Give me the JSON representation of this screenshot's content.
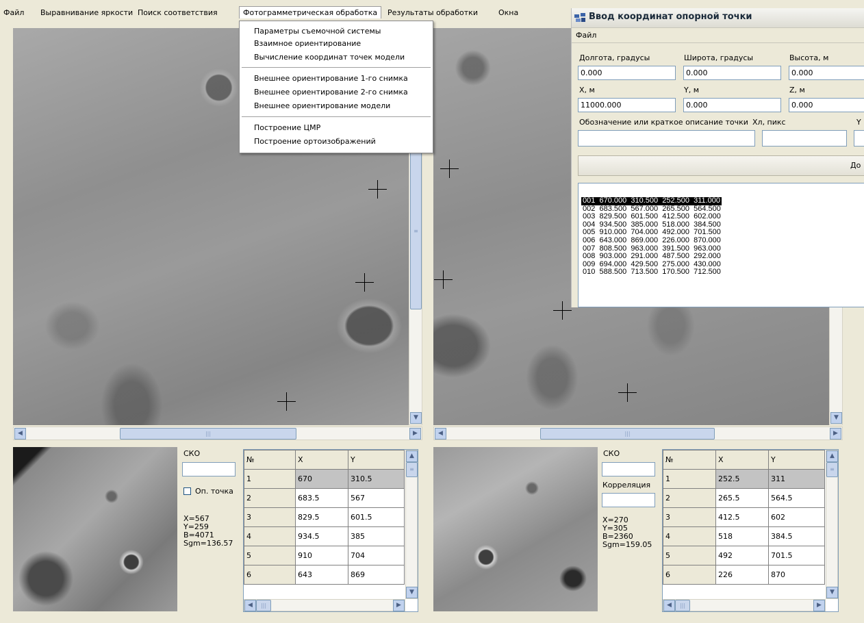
{
  "menubar": {
    "items": [
      "Файл",
      "Выравнивание яркости",
      "Поиск соответствия",
      "Фотограмметрическая обработка",
      "Результаты обработки",
      "Окна"
    ]
  },
  "dropdown": {
    "groups": [
      [
        "Параметры съемочной системы",
        "Взаимное ориентирование",
        "Вычисление координат точек модели"
      ],
      [
        "Внешнее ориентирование 1-го снимка",
        "Внешнее ориентирование 2-го снимка",
        "Внешнее ориентирование модели"
      ],
      [
        "Построение ЦМР",
        "Построение ортоизображений"
      ]
    ]
  },
  "left_panel": {
    "sko_label": "СКО",
    "sko_value": "",
    "checkbox_label": "Оп. точка",
    "info": [
      "X=567",
      "Y=259",
      "B=4071",
      "Sgm=136.57"
    ],
    "grid_headers": [
      "№",
      "X",
      "Y"
    ],
    "grid_rows": [
      [
        "1",
        "670",
        "310.5"
      ],
      [
        "2",
        "683.5",
        "567"
      ],
      [
        "3",
        "829.5",
        "601.5"
      ],
      [
        "4",
        "934.5",
        "385"
      ],
      [
        "5",
        "910",
        "704"
      ],
      [
        "6",
        "643",
        "869"
      ]
    ]
  },
  "right_panel": {
    "sko_label": "СКО",
    "sko_value": "",
    "corr_label": "Корреляция",
    "corr_value": "",
    "info": [
      "X=270",
      "Y=305",
      "B=2360",
      "Sgm=159.05"
    ],
    "grid_headers": [
      "№",
      "X",
      "Y"
    ],
    "grid_rows": [
      [
        "1",
        "252.5",
        "311"
      ],
      [
        "2",
        "265.5",
        "564.5"
      ],
      [
        "3",
        "412.5",
        "602"
      ],
      [
        "4",
        "518",
        "384.5"
      ],
      [
        "5",
        "492",
        "701.5"
      ],
      [
        "6",
        "226",
        "870"
      ]
    ]
  },
  "dialog": {
    "title": "Ввод координат опорной точки",
    "menu_file": "Файл",
    "labels": {
      "lon": "Долгота, градусы",
      "lat": "Широта, градусы",
      "height": "Высота, м",
      "x": "X, м",
      "y": "Y, м",
      "z": "Z, м",
      "desc": "Обозначение или краткое описание точки",
      "xl": "Хл, пикс",
      "yl": "Y"
    },
    "values": {
      "lon": "0.000",
      "lat": "0.000",
      "height": "0.000",
      "x": "11000.000",
      "y": "0.000",
      "z": "0.000",
      "desc": "",
      "xl": "",
      "yl": ""
    },
    "add_button": "До",
    "list": [
      "001  670.000  310.500  252.500  311.000",
      "002  683.500  567.000  265.500  564.500",
      "003  829.500  601.500  412.500  602.000",
      "004  934.500  385.000  518.000  384.500",
      "005  910.000  704.000  492.000  701.500",
      "006  643.000  869.000  226.000  870.000",
      "007  808.500  963.000  391.500  963.000",
      "008  903.000  291.000  487.500  292.000",
      "009  694.000  429.500  275.000  430.000",
      "010  588.500  713.500  170.500  712.500"
    ],
    "selected_index": 0
  },
  "icons": {
    "scroll_up": "▲",
    "scroll_down": "▼",
    "scroll_left": "◀",
    "scroll_right": "▶",
    "grip": "≡",
    "grip_h": "|||"
  }
}
